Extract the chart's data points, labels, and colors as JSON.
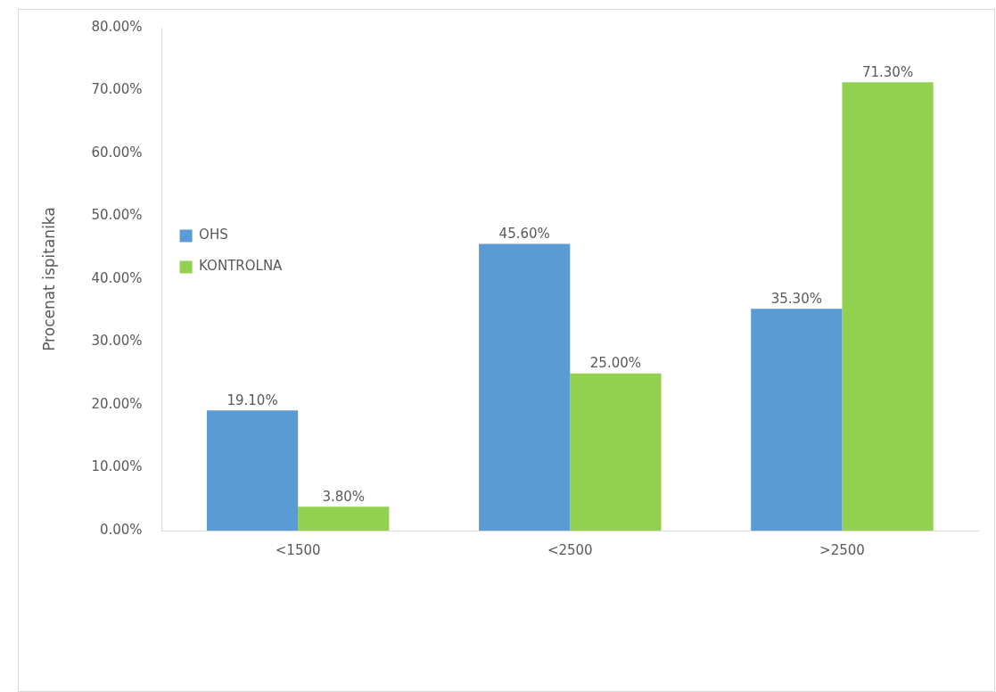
{
  "chart_data": {
    "type": "bar",
    "ylabel": "Procenat ispitanika",
    "categories": [
      "<1500",
      "<2500",
      ">2500"
    ],
    "series": [
      {
        "name": "OHS",
        "color": "#5b9bd5",
        "values": [
          19.1,
          45.6,
          35.3
        ],
        "value_labels": [
          "19.10%",
          "45.60%",
          "35.30%"
        ]
      },
      {
        "name": "KONTROLNA",
        "color": "#92d050",
        "values": [
          3.8,
          25.0,
          71.3
        ],
        "value_labels": [
          "3.80%",
          "25.00%",
          "71.30%"
        ]
      }
    ],
    "ylim": [
      0,
      80
    ],
    "yticks": [
      {
        "value": 0,
        "label": "0.00%"
      },
      {
        "value": 10,
        "label": "10.00%"
      },
      {
        "value": 20,
        "label": "20.00%"
      },
      {
        "value": 30,
        "label": "30.00%"
      },
      {
        "value": 40,
        "label": "40.00%"
      },
      {
        "value": 50,
        "label": "50.00%"
      },
      {
        "value": 60,
        "label": "60.00%"
      },
      {
        "value": 70,
        "label": "70.00%"
      },
      {
        "value": 80,
        "label": "80.00%"
      }
    ],
    "grid": false,
    "legend": "top"
  }
}
